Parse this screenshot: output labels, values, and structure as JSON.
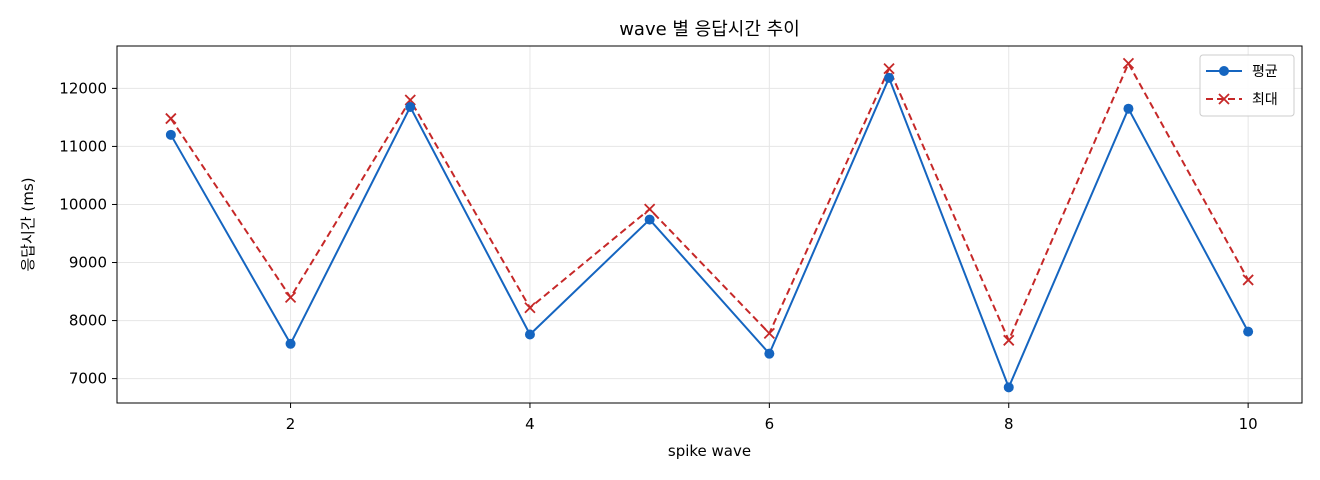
{
  "chart_data": {
    "type": "line",
    "title": "wave 별 응답시간 추이",
    "xlabel": "spike wave",
    "ylabel": "응답시간 (ms)",
    "x": [
      1,
      2,
      3,
      4,
      5,
      6,
      7,
      8,
      9,
      10
    ],
    "xlim": [
      0.55,
      10.45
    ],
    "ylim": [
      6580,
      12730
    ],
    "x_ticks": [
      2,
      4,
      6,
      8,
      10
    ],
    "y_ticks": [
      7000,
      8000,
      9000,
      10000,
      11000,
      12000
    ],
    "grid": true,
    "legend_position": "top-right",
    "series": [
      {
        "name": "평균",
        "color": "#1565c0",
        "line_style": "solid",
        "marker": "circle",
        "values": [
          11200,
          7600,
          11680,
          7760,
          9740,
          7430,
          12180,
          6850,
          11650,
          7810
        ]
      },
      {
        "name": "최대",
        "color": "#c62828",
        "line_style": "dashed",
        "marker": "x",
        "values": [
          11480,
          8400,
          11800,
          8220,
          9920,
          7780,
          12340,
          7660,
          12430,
          8700
        ]
      }
    ]
  }
}
